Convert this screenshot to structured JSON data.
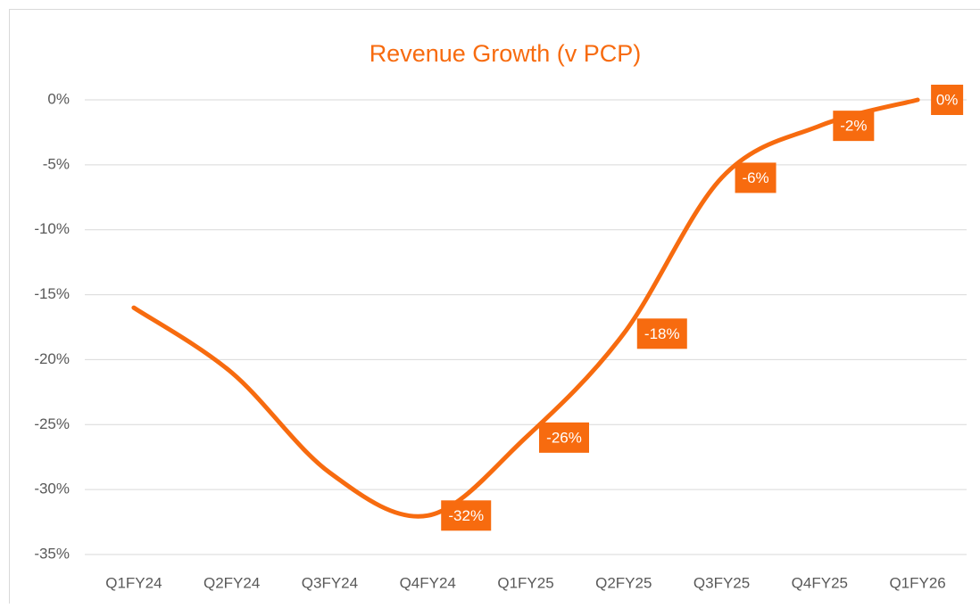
{
  "chart_data": {
    "type": "line",
    "title": "Revenue Growth (v PCP)",
    "categories": [
      "Q1FY24",
      "Q2FY24",
      "Q3FY24",
      "Q4FY24",
      "Q1FY25",
      "Q2FY25",
      "Q3FY25",
      "Q4FY25",
      "Q1FY26"
    ],
    "series": [
      {
        "name": "Revenue Growth",
        "color": "#f76b0f",
        "values": [
          -16,
          -21,
          -28.7,
          -32,
          -26,
          -18,
          -6,
          -2,
          0
        ],
        "value_labels": [
          null,
          null,
          null,
          "-32%",
          "-26%",
          "-18%",
          "-6%",
          "-2%",
          "0%"
        ]
      }
    ],
    "ylim": [
      -35,
      0
    ],
    "yticks": [
      {
        "value": 0,
        "label": "0%"
      },
      {
        "value": -5,
        "label": "-5%"
      },
      {
        "value": -10,
        "label": "-10%"
      },
      {
        "value": -15,
        "label": "-15%"
      },
      {
        "value": -20,
        "label": "-20%"
      },
      {
        "value": -25,
        "label": "-25%"
      },
      {
        "value": -30,
        "label": "-30%"
      },
      {
        "value": -35,
        "label": "-35%"
      }
    ],
    "grid": true,
    "smooth": true
  }
}
